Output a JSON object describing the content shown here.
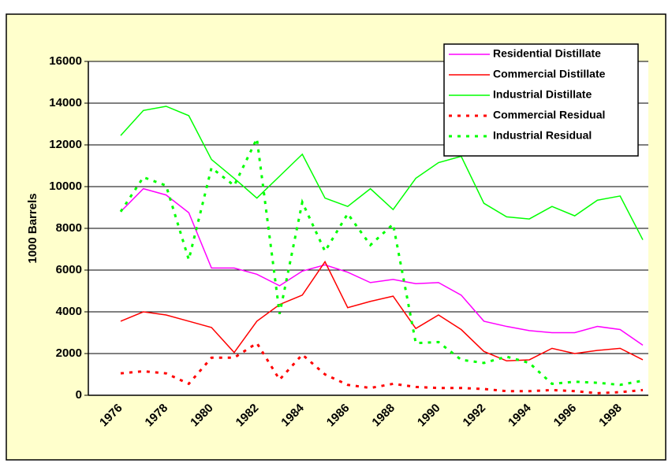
{
  "chart_data": {
    "type": "line",
    "y_label": "1000 Barrels",
    "categories": [
      "1976",
      null,
      "1978",
      null,
      "1980",
      null,
      "1982",
      null,
      "1984",
      null,
      "1986",
      null,
      "1988",
      null,
      "1990",
      null,
      "1992",
      null,
      "1994",
      null,
      "1996",
      null,
      "1998",
      null
    ],
    "ylim": [
      0,
      16000
    ],
    "yticks": [
      0,
      2000,
      4000,
      6000,
      8000,
      10000,
      12000,
      14000,
      16000
    ],
    "grid": true,
    "legend": "top-right",
    "series": [
      {
        "name": "Residential Distillate",
        "color": "#ff00ff",
        "style": "solid",
        "values": [
          8800,
          9900,
          9600,
          8750,
          6100,
          6100,
          5800,
          5250,
          5950,
          6250,
          5900,
          5400,
          5550,
          5350,
          5400,
          4800,
          3550,
          3300,
          3100,
          3000,
          3000,
          3300,
          3150,
          2400
        ]
      },
      {
        "name": "Commercial Distillate",
        "color": "#ff0000",
        "style": "solid",
        "values": [
          3550,
          4000,
          3850,
          3550,
          3250,
          2050,
          3550,
          4350,
          4800,
          6400,
          4200,
          4500,
          4750,
          3200,
          3850,
          3150,
          2100,
          1650,
          1700,
          2250,
          2000,
          2150,
          2250,
          1700
        ]
      },
      {
        "name": "Industrial Distillate",
        "color": "#00ff00",
        "style": "solid",
        "values": [
          12450,
          13650,
          13850,
          13400,
          11300,
          10400,
          9450,
          10500,
          11550,
          9450,
          9050,
          9900,
          8900,
          10400,
          11150,
          11450,
          9200,
          8550,
          8450,
          9050,
          8600,
          9350,
          9550,
          7450
        ]
      },
      {
        "name": "Commercial Residual",
        "color": "#ff0000",
        "style": "dashed",
        "values": [
          1050,
          1150,
          1050,
          550,
          1800,
          1800,
          2500,
          750,
          1950,
          1000,
          500,
          350,
          550,
          400,
          350,
          350,
          300,
          200,
          200,
          250,
          200,
          100,
          150,
          250
        ]
      },
      {
        "name": "Industrial Residual",
        "color": "#00ff00",
        "style": "dashed",
        "values": [
          8800,
          10450,
          10050,
          6500,
          10900,
          10050,
          12300,
          3900,
          9250,
          6900,
          8700,
          7200,
          8200,
          2500,
          2550,
          1700,
          1550,
          1850,
          1550,
          550,
          650,
          600,
          500,
          700
        ]
      }
    ]
  }
}
